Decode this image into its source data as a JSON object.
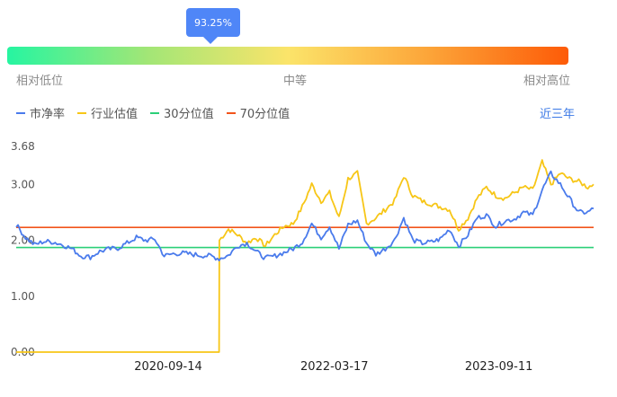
{
  "percentile": {
    "label": "93.25%",
    "value": 0.9325,
    "scale": {
      "low": "相对低位",
      "mid": "中等",
      "high": "相对高位"
    },
    "gradient": [
      "#26f5a1",
      "#a2e676",
      "#fbe46a",
      "#fca539",
      "#fd5b08"
    ]
  },
  "controls": {
    "range_label": "近三年"
  },
  "legend": [
    {
      "label": "市净率",
      "color": "#4a7bec"
    },
    {
      "label": "行业估值",
      "color": "#f7c617"
    },
    {
      "label": "30分位值",
      "color": "#2bcf78"
    },
    {
      "label": "70分位值",
      "color": "#f2541b"
    }
  ],
  "chart_data": {
    "type": "line",
    "x_range": [
      "2019-05-01",
      "2024-07-20"
    ],
    "y_range": [
      0,
      3.68
    ],
    "y_ticks": [
      {
        "value": 0,
        "label": "0.00"
      },
      {
        "value": 1,
        "label": "1.00"
      },
      {
        "value": 2,
        "label": "2.00"
      },
      {
        "value": 3,
        "label": "3.00"
      },
      {
        "value": 3.68,
        "label": "3.68"
      }
    ],
    "x_ticks": [
      {
        "date": "2020-09-14",
        "label": "2020-09-14"
      },
      {
        "date": "2022-03-17",
        "label": "2022-03-17"
      },
      {
        "date": "2023-09-11",
        "label": "2023-09-11"
      }
    ],
    "series": [
      {
        "name": "市净率",
        "color": "#4a7bec",
        "points": [
          [
            "2019-05-01",
            2.28
          ],
          [
            "2019-06-01",
            2.05
          ],
          [
            "2019-07-01",
            1.92
          ],
          [
            "2019-08-01",
            1.98
          ],
          [
            "2019-09-01",
            1.97
          ],
          [
            "2019-10-01",
            1.92
          ],
          [
            "2019-11-01",
            1.85
          ],
          [
            "2019-12-01",
            1.72
          ],
          [
            "2020-01-01",
            1.7
          ],
          [
            "2020-02-01",
            1.8
          ],
          [
            "2020-03-01",
            1.84
          ],
          [
            "2020-04-01",
            1.86
          ],
          [
            "2020-05-01",
            1.95
          ],
          [
            "2020-06-01",
            2.05
          ],
          [
            "2020-07-01",
            2.0
          ],
          [
            "2020-08-01",
            2.02
          ],
          [
            "2020-09-01",
            1.72
          ],
          [
            "2020-10-01",
            1.76
          ],
          [
            "2020-11-01",
            1.77
          ],
          [
            "2020-12-01",
            1.75
          ],
          [
            "2021-01-01",
            1.73
          ],
          [
            "2021-02-01",
            1.72
          ],
          [
            "2021-03-01",
            1.67
          ],
          [
            "2021-04-01",
            1.73
          ],
          [
            "2021-05-01",
            1.9
          ],
          [
            "2021-06-01",
            1.95
          ],
          [
            "2021-07-01",
            1.8
          ],
          [
            "2021-08-01",
            1.68
          ],
          [
            "2021-09-01",
            1.72
          ],
          [
            "2021-10-01",
            1.78
          ],
          [
            "2021-11-01",
            1.85
          ],
          [
            "2021-12-01",
            1.97
          ],
          [
            "2022-01-01",
            2.3
          ],
          [
            "2022-02-01",
            2.05
          ],
          [
            "2022-03-01",
            2.25
          ],
          [
            "2022-04-01",
            1.85
          ],
          [
            "2022-05-01",
            2.28
          ],
          [
            "2022-06-01",
            2.35
          ],
          [
            "2022-07-01",
            1.95
          ],
          [
            "2022-08-01",
            1.75
          ],
          [
            "2022-09-01",
            1.85
          ],
          [
            "2022-10-01",
            2.0
          ],
          [
            "2022-11-01",
            2.4
          ],
          [
            "2022-12-01",
            2.0
          ],
          [
            "2023-01-01",
            1.95
          ],
          [
            "2023-02-01",
            1.97
          ],
          [
            "2023-03-01",
            2.02
          ],
          [
            "2023-04-01",
            2.2
          ],
          [
            "2023-05-01",
            1.9
          ],
          [
            "2023-06-01",
            2.1
          ],
          [
            "2023-07-01",
            2.4
          ],
          [
            "2023-08-01",
            2.45
          ],
          [
            "2023-09-01",
            2.25
          ],
          [
            "2023-10-01",
            2.35
          ],
          [
            "2023-11-01",
            2.38
          ],
          [
            "2023-12-01",
            2.5
          ],
          [
            "2024-01-01",
            2.45
          ],
          [
            "2024-02-01",
            2.9
          ],
          [
            "2024-03-01",
            3.2
          ],
          [
            "2024-04-01",
            3.0
          ],
          [
            "2024-05-01",
            2.75
          ],
          [
            "2024-06-01",
            2.5
          ],
          [
            "2024-07-01",
            2.5
          ],
          [
            "2024-07-20",
            2.57
          ]
        ]
      },
      {
        "name": "行业估值",
        "color": "#f7c617",
        "points": [
          [
            "2019-05-01",
            0.0
          ],
          [
            "2021-03-01",
            0.0
          ],
          [
            "2021-03-02",
            2.0
          ],
          [
            "2021-04-01",
            2.2
          ],
          [
            "2021-05-01",
            2.1
          ],
          [
            "2021-06-01",
            1.95
          ],
          [
            "2021-07-01",
            2.05
          ],
          [
            "2021-08-01",
            1.9
          ],
          [
            "2021-09-01",
            2.1
          ],
          [
            "2021-10-01",
            2.25
          ],
          [
            "2021-11-01",
            2.3
          ],
          [
            "2021-12-01",
            2.6
          ],
          [
            "2022-01-01",
            3.0
          ],
          [
            "2022-02-01",
            2.7
          ],
          [
            "2022-03-01",
            2.85
          ],
          [
            "2022-04-01",
            2.4
          ],
          [
            "2022-05-01",
            3.1
          ],
          [
            "2022-06-01",
            3.2
          ],
          [
            "2022-07-01",
            2.3
          ],
          [
            "2022-08-01",
            2.4
          ],
          [
            "2022-09-01",
            2.55
          ],
          [
            "2022-10-01",
            2.7
          ],
          [
            "2022-11-01",
            3.15
          ],
          [
            "2022-12-01",
            2.8
          ],
          [
            "2023-01-01",
            2.7
          ],
          [
            "2023-02-01",
            2.65
          ],
          [
            "2023-03-01",
            2.6
          ],
          [
            "2023-04-01",
            2.55
          ],
          [
            "2023-05-01",
            2.2
          ],
          [
            "2023-06-01",
            2.4
          ],
          [
            "2023-07-01",
            2.75
          ],
          [
            "2023-08-01",
            2.95
          ],
          [
            "2023-09-01",
            2.8
          ],
          [
            "2023-10-01",
            2.75
          ],
          [
            "2023-11-01",
            2.85
          ],
          [
            "2023-12-01",
            2.95
          ],
          [
            "2024-01-01",
            2.9
          ],
          [
            "2024-02-01",
            3.4
          ],
          [
            "2024-03-01",
            3.0
          ],
          [
            "2024-04-01",
            3.2
          ],
          [
            "2024-05-01",
            3.1
          ],
          [
            "2024-06-01",
            3.05
          ],
          [
            "2024-07-01",
            2.95
          ],
          [
            "2024-07-20",
            3.0
          ]
        ]
      },
      {
        "name": "30分位值",
        "color": "#2bcf78",
        "points": [
          [
            "2019-05-01",
            1.87
          ],
          [
            "2024-07-20",
            1.87
          ]
        ]
      },
      {
        "name": "70分位值",
        "color": "#f2541b",
        "points": [
          [
            "2019-05-01",
            2.23
          ],
          [
            "2024-07-20",
            2.23
          ]
        ]
      }
    ],
    "grid": false,
    "legend_position": "top-left"
  }
}
